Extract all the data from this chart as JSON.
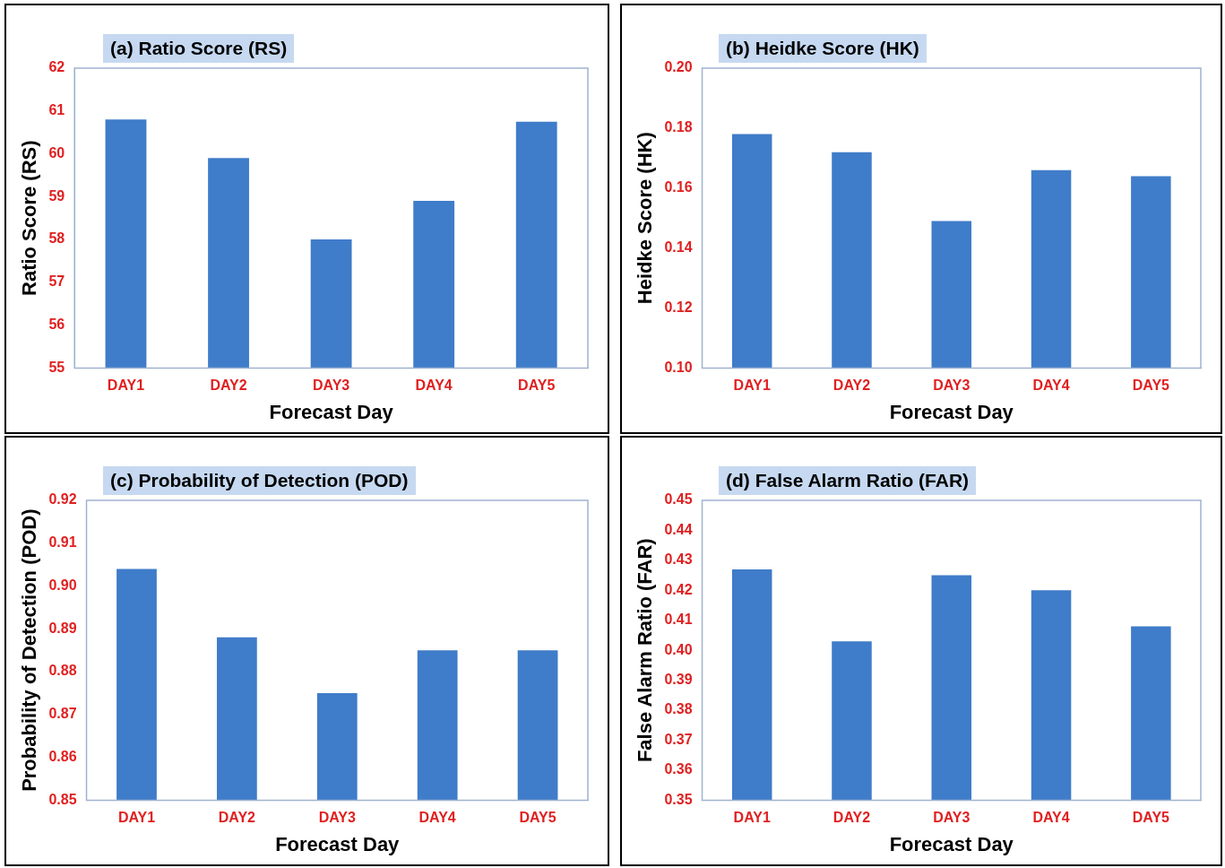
{
  "chart_data": [
    {
      "type": "bar",
      "title": "(a) Ratio Score (RS)",
      "xlabel": "Forecast Day",
      "ylabel": "Ratio Score (RS)",
      "categories": [
        "DAY1",
        "DAY2",
        "DAY3",
        "DAY4",
        "DAY5"
      ],
      "values": [
        60.8,
        59.9,
        58.0,
        58.9,
        60.75
      ],
      "color": "#3f7cc9",
      "ylim": [
        55,
        62
      ],
      "yticks": [
        55,
        56,
        57,
        58,
        59,
        60,
        61,
        62
      ],
      "grid": false,
      "legend": false
    },
    {
      "type": "bar",
      "title": "(b) Heidke Score (HK)",
      "xlabel": "Forecast Day",
      "ylabel": "Heidke Score (HK)",
      "categories": [
        "DAY1",
        "DAY2",
        "DAY3",
        "DAY4",
        "DAY5"
      ],
      "values": [
        0.178,
        0.172,
        0.149,
        0.166,
        0.164
      ],
      "color": "#3f7cc9",
      "ylim": [
        0.1,
        0.2
      ],
      "yticks": [
        {
          "value": 0.1,
          "label": "0.10"
        },
        {
          "value": 0.12,
          "label": "0.12"
        },
        {
          "value": 0.14,
          "label": "0.14"
        },
        {
          "value": 0.16,
          "label": "0.16"
        },
        {
          "value": 0.18,
          "label": "0.18"
        },
        {
          "value": 0.2,
          "label": "0.20"
        }
      ],
      "grid": false,
      "legend": false
    },
    {
      "type": "bar",
      "title": "(c) Probability of Detection (POD)",
      "xlabel": "Forecast Day",
      "ylabel": "Probability of Detection (POD)",
      "categories": [
        "DAY1",
        "DAY2",
        "DAY3",
        "DAY4",
        "DAY5"
      ],
      "values": [
        0.904,
        0.888,
        0.875,
        0.885,
        0.885
      ],
      "color": "#3f7cc9",
      "ylim": [
        0.85,
        0.92
      ],
      "yticks": [
        0.85,
        0.86,
        0.87,
        0.88,
        0.89,
        {
          "value": 0.9,
          "label": "0.90"
        },
        0.91,
        0.92
      ],
      "grid": false,
      "legend": false
    },
    {
      "type": "bar",
      "title": "(d) False Alarm Ratio (FAR)",
      "xlabel": "Forecast Day",
      "ylabel": "False Alarm Ratio (FAR)",
      "categories": [
        "DAY1",
        "DAY2",
        "DAY3",
        "DAY4",
        "DAY5"
      ],
      "values": [
        0.427,
        0.403,
        0.425,
        0.42,
        0.408
      ],
      "color": "#3f7cc9",
      "ylim": [
        0.35,
        0.45
      ],
      "yticks": [
        0.35,
        0.36,
        0.37,
        0.38,
        0.39,
        {
          "value": 0.4,
          "label": "0.40"
        },
        0.41,
        0.42,
        0.43,
        0.44,
        0.45
      ],
      "grid": false,
      "legend": false
    }
  ]
}
